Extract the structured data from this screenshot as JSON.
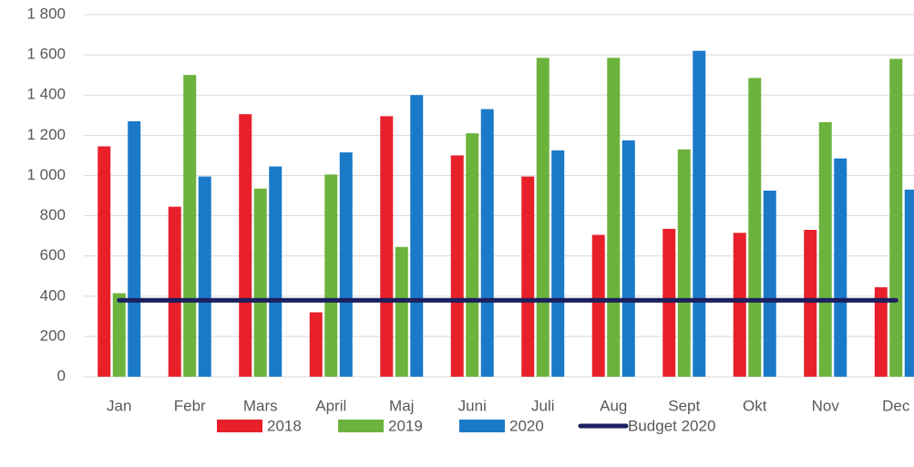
{
  "chart_data": {
    "type": "bar",
    "categories": [
      "Jan",
      "Febr",
      "Mars",
      "April",
      "Maj",
      "Juni",
      "Juli",
      "Aug",
      "Sept",
      "Okt",
      "Nov",
      "Dec"
    ],
    "series": [
      {
        "name": "2018",
        "color": "#e8202a",
        "values": [
          1145,
          845,
          1305,
          320,
          1295,
          1100,
          995,
          705,
          735,
          715,
          730,
          445
        ]
      },
      {
        "name": "2019",
        "color": "#6cb33e",
        "values": [
          415,
          1500,
          935,
          1005,
          645,
          1210,
          1585,
          1585,
          1130,
          1485,
          1265,
          1580
        ]
      },
      {
        "name": "2020",
        "color": "#1a7ac8",
        "values": [
          1270,
          995,
          1045,
          1115,
          1400,
          1330,
          1125,
          1175,
          1620,
          925,
          1085,
          930
        ]
      },
      {
        "name": "Budget 2020",
        "type": "line",
        "color": "#1b1f5e",
        "values": [
          380,
          380,
          380,
          380,
          380,
          380,
          380,
          380,
          380,
          380,
          380,
          380
        ]
      }
    ],
    "ylim": [
      0,
      1800
    ],
    "yticks": [
      0,
      200,
      400,
      600,
      800,
      {
        "value": 1000,
        "label": "1 000"
      },
      {
        "value": 1200,
        "label": "1 200"
      },
      {
        "value": 1400,
        "label": "1 400"
      },
      {
        "value": 1600,
        "label": "1 600"
      },
      {
        "value": 1800,
        "label": "1 800"
      }
    ],
    "grid": true,
    "legend": "bottom"
  }
}
